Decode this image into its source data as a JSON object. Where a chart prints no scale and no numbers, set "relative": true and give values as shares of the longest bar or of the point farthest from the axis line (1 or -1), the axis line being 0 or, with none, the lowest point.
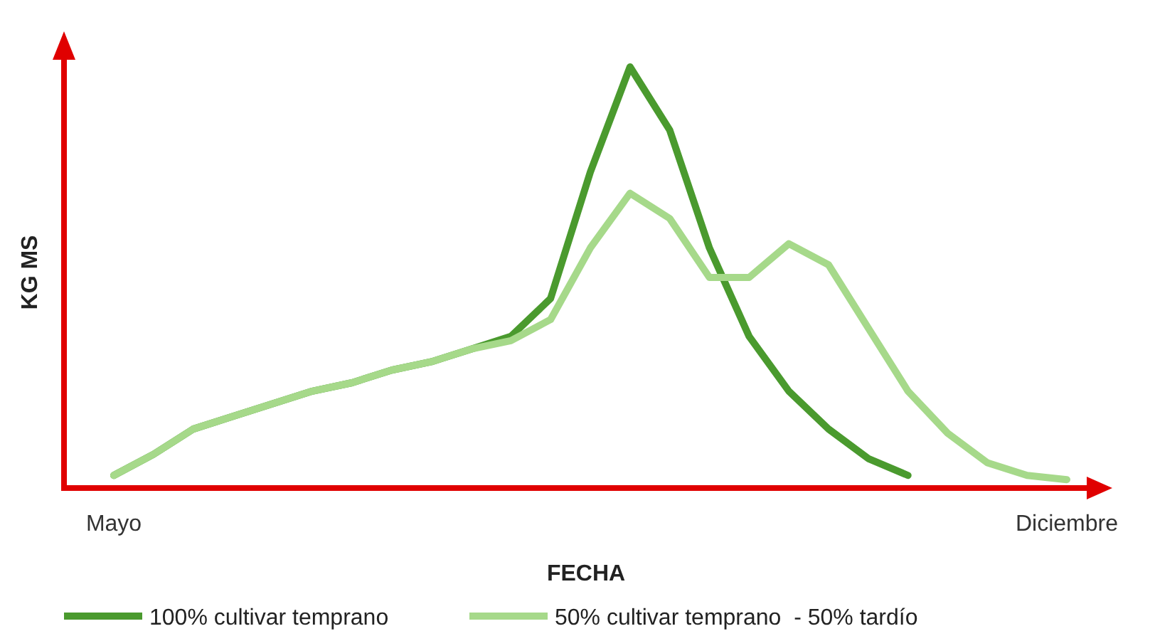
{
  "chart_data": {
    "type": "line",
    "relative": true,
    "xlabel": "FECHA",
    "ylabel": "KG MS",
    "categories": [
      "Mayo",
      null,
      null,
      null,
      null,
      null,
      null,
      null,
      null,
      null,
      null,
      null,
      null,
      null,
      null,
      null,
      null,
      null,
      null,
      null,
      null,
      null,
      null,
      null,
      "Diciembre"
    ],
    "series": [
      {
        "name": "100% cultivar temprano",
        "color": "#4a9a2e",
        "values": [
          0.03,
          0.08,
          0.14,
          0.17,
          0.2,
          0.23,
          0.25,
          0.28,
          0.3,
          0.33,
          0.36,
          0.45,
          0.75,
          1.0,
          0.85,
          0.57,
          0.36,
          0.23,
          0.14,
          0.07,
          0.03,
          null,
          null,
          null,
          null
        ]
      },
      {
        "name": "50% cultivar temprano  - 50% tardío",
        "color": "#a6d98a",
        "values": [
          0.03,
          0.08,
          0.14,
          0.17,
          0.2,
          0.23,
          0.25,
          0.28,
          0.3,
          0.33,
          0.35,
          0.4,
          0.57,
          0.7,
          0.64,
          0.5,
          0.5,
          0.58,
          0.53,
          0.38,
          0.23,
          0.13,
          0.06,
          0.03,
          0.02
        ]
      }
    ],
    "legend": "bottom",
    "grid": false,
    "marker": "none",
    "line_style": "solid"
  }
}
